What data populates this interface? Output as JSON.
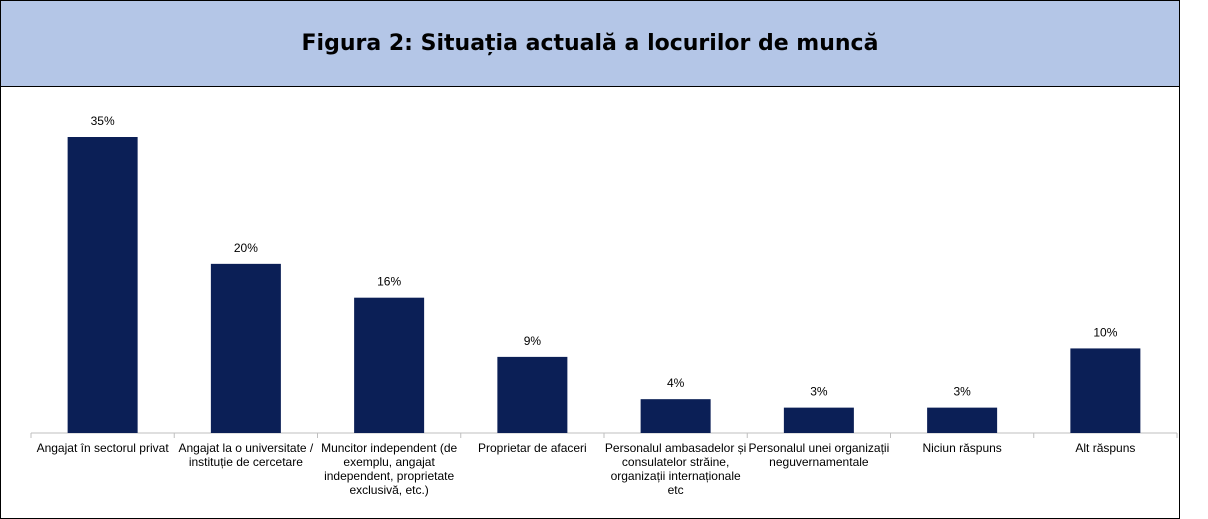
{
  "chart_data": {
    "type": "bar",
    "title": "Figura 2: Situația actuală a locurilor de muncă",
    "categories": [
      "Angajat în sectorul privat",
      "Angajat la o universitate / instituție de cercetare",
      "Muncitor independent (de exemplu, angajat independent, proprietate exclusivă, etc.)",
      "Proprietar de afaceri",
      "Personalul ambasadelor și consulatelor străine, organizații internaționale etc",
      "Personalul unei organizații neguvernamentale",
      "Niciun răspuns",
      "Alt răspuns"
    ],
    "values": [
      35,
      20,
      16,
      9,
      4,
      3,
      3,
      10
    ],
    "value_labels": [
      "35%",
      "20%",
      "16%",
      "9%",
      "4%",
      "3%",
      "3%",
      "10%"
    ],
    "color": "#0b1f56"
  }
}
